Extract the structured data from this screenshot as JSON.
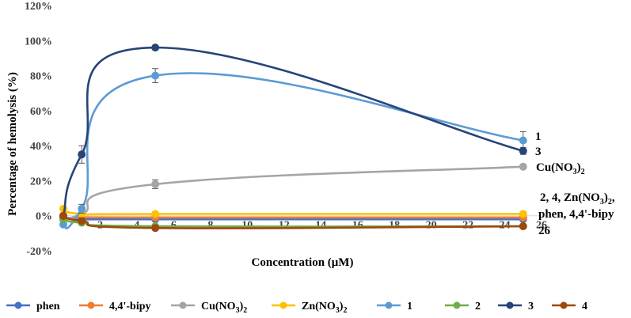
{
  "chart_data": {
    "type": "line",
    "title": "",
    "xlabel": "Concentration (μM)",
    "ylabel": "Percentage of hemolysis (%)",
    "xlim": [
      0,
      26
    ],
    "ylim": [
      -20,
      120
    ],
    "x_ticks": [
      0,
      2,
      4,
      6,
      8,
      10,
      12,
      14,
      16,
      18,
      20,
      22,
      24,
      26
    ],
    "y_ticks": [
      {
        "value": -20,
        "label": "-20%"
      },
      {
        "value": 0,
        "label": "0%"
      },
      {
        "value": 20,
        "label": "20%"
      },
      {
        "value": 40,
        "label": "40%"
      },
      {
        "value": 60,
        "label": "60%"
      },
      {
        "value": 80,
        "label": "80%"
      },
      {
        "value": 100,
        "label": "100%"
      },
      {
        "value": 120,
        "label": "120%"
      }
    ],
    "x": [
      0,
      1,
      5,
      25
    ],
    "series": [
      {
        "id": "phen",
        "name": "phen",
        "sub": "",
        "color": "#4472c4",
        "values": [
          -1,
          -2,
          -2,
          -2
        ],
        "errors": [
          0,
          0,
          0,
          0
        ]
      },
      {
        "id": "bipy",
        "name": "4,4'-bipy",
        "sub": "",
        "color": "#ed7d31",
        "values": [
          -2,
          -1,
          -1,
          -1
        ],
        "errors": [
          0,
          0,
          0,
          0
        ]
      },
      {
        "id": "cuno3",
        "name": "Cu(NO",
        "sub": "3",
        "close": ")",
        "sub2": "2",
        "color": "#a5a5a5",
        "values": [
          -2,
          1,
          18,
          28
        ],
        "errors": [
          0,
          2,
          2.5,
          1
        ]
      },
      {
        "id": "znno3",
        "name": "Zn(NO",
        "sub": "3",
        "close": ")",
        "sub2": "2",
        "color": "#ffc000",
        "values": [
          4,
          1,
          1,
          1
        ],
        "errors": [
          0,
          0,
          0,
          0
        ]
      },
      {
        "id": "c1",
        "name": "1",
        "sub": "",
        "color": "#5b9bd5",
        "values": [
          -5,
          4,
          80,
          43
        ],
        "errors": [
          0.5,
          2.5,
          4,
          5
        ]
      },
      {
        "id": "c2",
        "name": "2",
        "sub": "",
        "color": "#70ad47",
        "values": [
          -2,
          -4,
          -6,
          -6
        ],
        "errors": [
          0,
          0,
          0,
          0
        ]
      },
      {
        "id": "c3",
        "name": "3",
        "sub": "",
        "color": "#264478",
        "values": [
          0,
          35,
          96,
          37
        ],
        "errors": [
          0,
          5,
          1,
          2
        ]
      },
      {
        "id": "c4",
        "name": "4",
        "sub": "",
        "color": "#9e480e",
        "values": [
          0,
          -3,
          -7,
          -6
        ],
        "errors": [
          0,
          0,
          0,
          0
        ]
      }
    ],
    "end_labels": {
      "l1": "1",
      "l3": "3",
      "cu": "Cu(NO",
      "cu_sub": "3",
      "cu_close": ")",
      "cu_sub2": "2",
      "group_line1_a": "2, 4, Zn(NO",
      "group_line1_sub": "3",
      "group_line1_close": ")",
      "group_line1_sub2": "2",
      "group_line1_end": ",",
      "group_line2": "phen, 4,4'-bipy",
      "l26": "26"
    },
    "legend_position": "bottom"
  }
}
